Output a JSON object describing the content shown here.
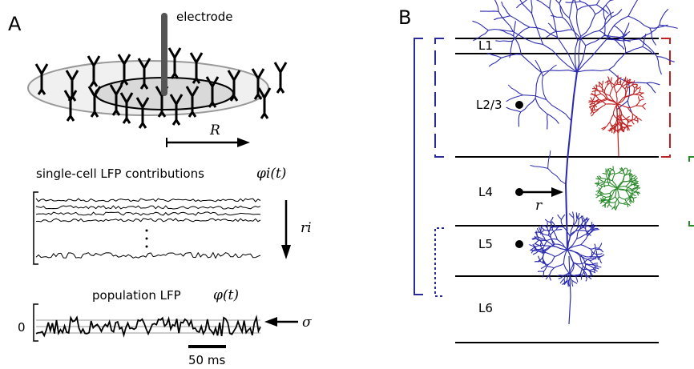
{
  "panel_a": {
    "label": "A",
    "electrode": "electrode",
    "radius": "R",
    "single_cell_title": "single-cell LFP contributions",
    "single_cell_symbol": "φi(t)",
    "distance_symbol": "ri",
    "population_title": "population LFP",
    "population_symbol": "φ(t)",
    "sigma": "σ",
    "zero": "0",
    "scale_bar": "50 ms"
  },
  "panel_b": {
    "label": "B",
    "layers": [
      "L1",
      "L2/3",
      "L4",
      "L5",
      "L6"
    ],
    "distance": "r"
  }
}
